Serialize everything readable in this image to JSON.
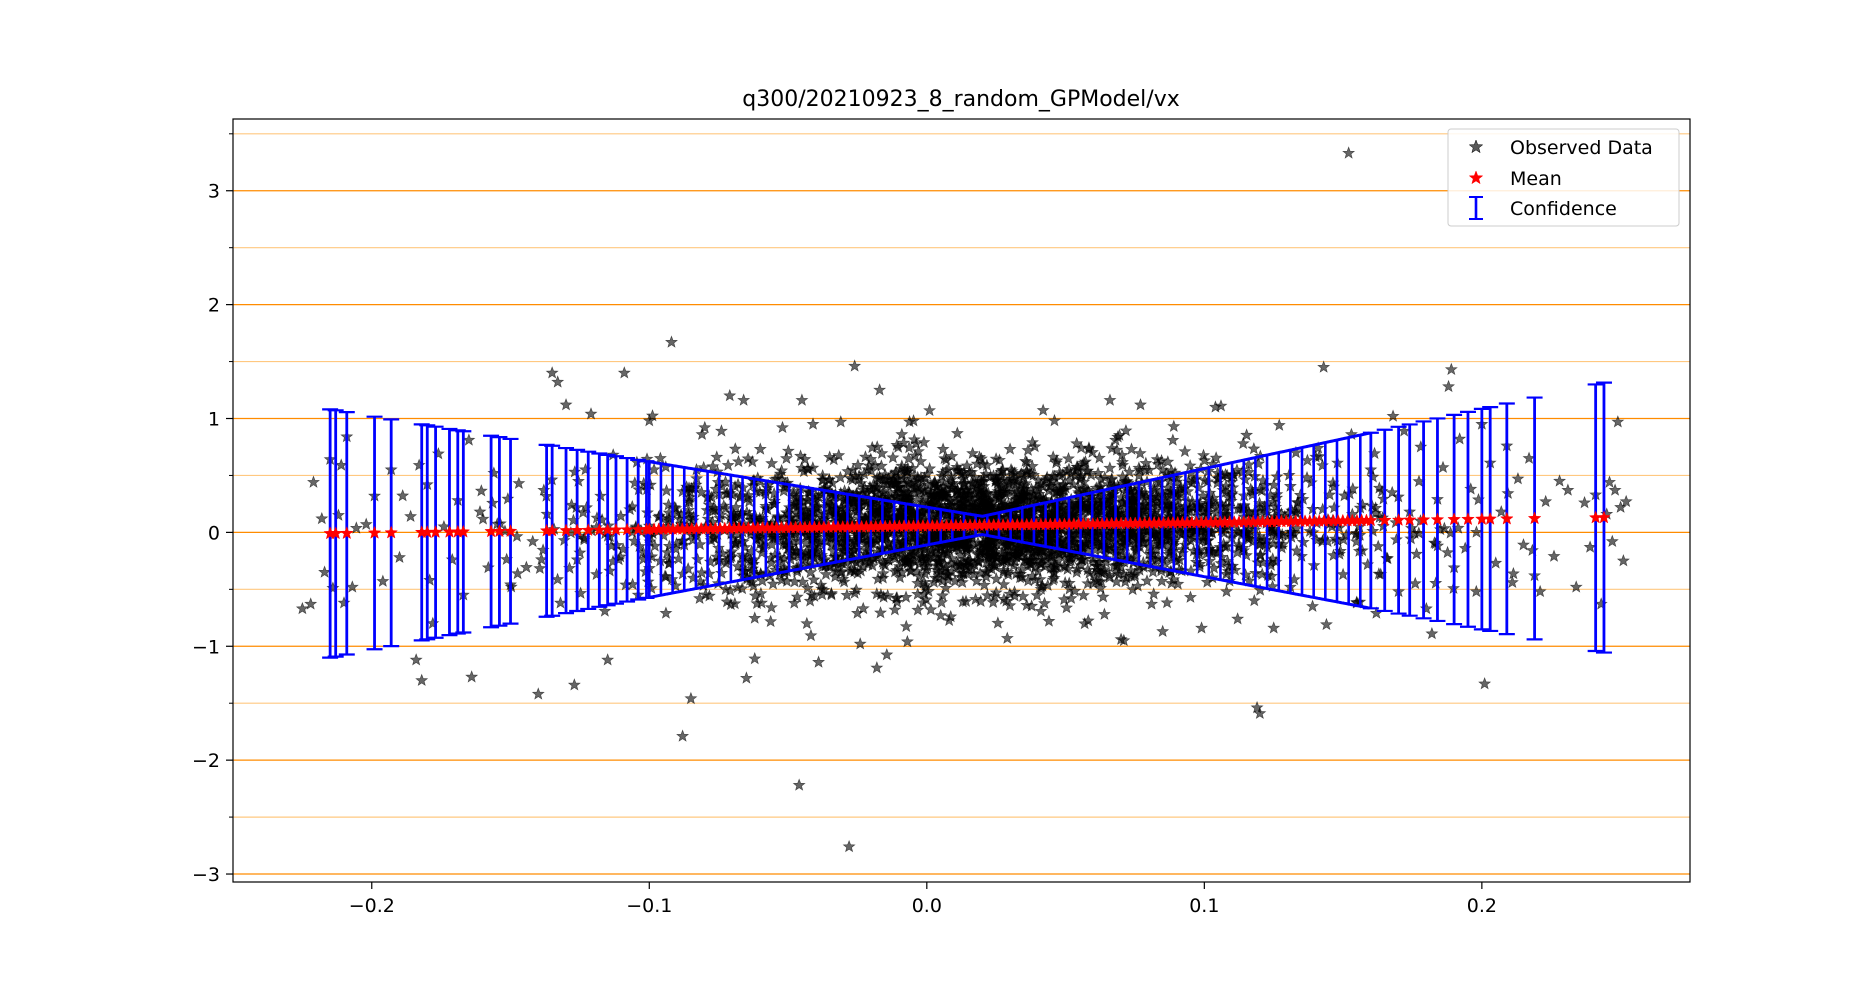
{
  "chart_data": {
    "type": "scatter",
    "title": "q300/20210923_8_random_GPModel/vx",
    "xlabel": "",
    "ylabel": "",
    "xlim": [
      -0.25,
      0.275
    ],
    "ylim": [
      -3.07,
      3.63
    ],
    "x_ticks": [
      -0.2,
      -0.1,
      0.0,
      0.1,
      0.2
    ],
    "x_tick_labels": [
      "−0.2",
      "−0.1",
      "0.0",
      "0.1",
      "0.2"
    ],
    "y_ticks": [
      -3,
      -2,
      -1,
      0,
      1,
      2,
      3
    ],
    "y_tick_labels": [
      "−3",
      "−2",
      "−1",
      "0",
      "1",
      "2",
      "3"
    ],
    "y_minor_gridlines": [
      -2.5,
      -1.5,
      -0.5,
      0.5,
      1.5,
      2.5,
      3.5
    ],
    "grid": true,
    "legend_position": "top-right",
    "colors": {
      "observed": "#000000",
      "mean": "#ff0000",
      "confidence": "#0000ff",
      "grid_major": "#ff8c00",
      "grid_minor": "#ffc880"
    },
    "legend": [
      {
        "label": "Observed Data",
        "marker": "star",
        "color": "#000000"
      },
      {
        "label": "Mean",
        "marker": "star",
        "color": "#ff0000"
      },
      {
        "label": "Confidence",
        "marker": "errorbar",
        "color": "#0000ff"
      }
    ],
    "mean_line": {
      "x_start": -0.215,
      "y_start": -0.01,
      "x_end": 0.245,
      "y_end": 0.13
    },
    "confidence_band": {
      "x_min_point": 0.02,
      "half_width_at_min": 0.08,
      "half_width_at_left": 1.09,
      "half_width_at_right": 1.19
    },
    "series": [
      {
        "name": "Observed Data",
        "marker": "star",
        "points": [
          [
            -0.225,
            -0.67
          ],
          [
            -0.222,
            -0.63
          ],
          [
            -0.221,
            0.44
          ],
          [
            -0.218,
            0.12
          ],
          [
            -0.217,
            -0.35
          ],
          [
            -0.215,
            0.64
          ],
          [
            -0.214,
            -0.49
          ],
          [
            -0.212,
            0.15
          ],
          [
            -0.211,
            0.59
          ],
          [
            -0.21,
            -0.62
          ],
          [
            -0.209,
            0.84
          ],
          [
            -0.207,
            -0.48
          ],
          [
            -0.202,
            0.07
          ],
          [
            -0.199,
            0.32
          ],
          [
            -0.196,
            -0.43
          ],
          [
            -0.193,
            0.55
          ],
          [
            -0.19,
            -0.22
          ],
          [
            -0.186,
            0.14
          ],
          [
            -0.184,
            -1.12
          ],
          [
            -0.182,
            -1.3
          ],
          [
            -0.18,
            0.42
          ],
          [
            -0.178,
            -0.8
          ],
          [
            -0.176,
            0.69
          ],
          [
            -0.174,
            0.05
          ],
          [
            -0.171,
            -0.24
          ],
          [
            -0.169,
            0.28
          ],
          [
            -0.167,
            -0.55
          ],
          [
            -0.165,
            0.81
          ],
          [
            -0.164,
            -1.27
          ],
          [
            -0.161,
            0.18
          ],
          [
            -0.158,
            -0.31
          ],
          [
            -0.156,
            0.52
          ],
          [
            -0.152,
            0.01
          ],
          [
            -0.15,
            -0.46
          ],
          [
            -0.147,
            0.43
          ],
          [
            -0.142,
            -0.08
          ],
          [
            -0.14,
            -1.42
          ],
          [
            -0.138,
            0.37
          ],
          [
            -0.135,
            1.4
          ],
          [
            -0.133,
            1.32
          ],
          [
            -0.132,
            -0.62
          ],
          [
            -0.13,
            1.12
          ],
          [
            -0.128,
            0.24
          ],
          [
            -0.127,
            -1.34
          ],
          [
            -0.125,
            -0.18
          ],
          [
            -0.123,
            0.55
          ],
          [
            -0.121,
            1.04
          ],
          [
            -0.119,
            -0.37
          ],
          [
            -0.117,
            0.11
          ],
          [
            -0.115,
            -1.12
          ],
          [
            -0.113,
            0.68
          ],
          [
            -0.111,
            -0.24
          ],
          [
            -0.109,
            1.4
          ],
          [
            -0.107,
            0.2
          ],
          [
            -0.104,
            -0.55
          ],
          [
            -0.102,
            0.43
          ],
          [
            -0.1,
            0.98
          ],
          [
            -0.098,
            -0.12
          ],
          [
            -0.096,
            0.65
          ],
          [
            -0.094,
            -0.71
          ],
          [
            -0.092,
            1.67
          ],
          [
            -0.09,
            0.17
          ],
          [
            -0.088,
            -1.79
          ],
          [
            -0.086,
            -0.32
          ],
          [
            -0.085,
            -1.46
          ],
          [
            -0.083,
            0.55
          ],
          [
            -0.081,
            0.86
          ],
          [
            -0.08,
            0.92
          ],
          [
            -0.078,
            -0.26
          ],
          [
            -0.076,
            0.38
          ],
          [
            -0.074,
            0.89
          ],
          [
            -0.072,
            -0.61
          ],
          [
            -0.071,
            1.2
          ],
          [
            -0.069,
            0.06
          ],
          [
            -0.066,
            1.16
          ],
          [
            -0.065,
            -1.28
          ],
          [
            -0.063,
            -0.44
          ],
          [
            -0.062,
            -1.11
          ],
          [
            -0.06,
            0.73
          ],
          [
            -0.058,
            0.23
          ],
          [
            -0.056,
            -0.66
          ],
          [
            -0.054,
            0.47
          ],
          [
            -0.052,
            0.92
          ],
          [
            -0.05,
            -0.14
          ],
          [
            -0.048,
            0.36
          ],
          [
            -0.046,
            -2.22
          ],
          [
            -0.045,
            1.16
          ],
          [
            -0.043,
            -0.49
          ],
          [
            -0.041,
            0.95
          ],
          [
            -0.039,
            -1.14
          ],
          [
            -0.037,
            0.16
          ],
          [
            -0.035,
            0.66
          ],
          [
            -0.033,
            -0.39
          ],
          [
            -0.031,
            0.97
          ],
          [
            -0.029,
            0.29
          ],
          [
            -0.028,
            -2.76
          ],
          [
            -0.026,
            1.46
          ],
          [
            -0.025,
            -0.71
          ],
          [
            -0.024,
            -0.98
          ],
          [
            -0.022,
            0.12
          ],
          [
            -0.02,
            0.54
          ],
          [
            -0.018,
            -1.19
          ],
          [
            -0.017,
            1.25
          ],
          [
            -0.015,
            -0.29
          ],
          [
            -0.013,
            0.43
          ],
          [
            -0.011,
            -0.58
          ],
          [
            -0.009,
            0.86
          ],
          [
            -0.007,
            -0.96
          ],
          [
            -0.005,
            0.19
          ],
          [
            -0.003,
            0.71
          ],
          [
            -0.001,
            -0.44
          ],
          [
            0.001,
            1.07
          ],
          [
            0.003,
            0.33
          ],
          [
            0.005,
            -0.73
          ],
          [
            0.007,
            0.54
          ],
          [
            0.009,
            -0.23
          ],
          [
            0.011,
            0.87
          ],
          [
            0.013,
            -0.61
          ],
          [
            0.015,
            0.15
          ],
          [
            0.017,
            -0.37
          ],
          [
            0.019,
            0.66
          ],
          [
            0.021,
            -0.12
          ],
          [
            0.023,
            0.49
          ],
          [
            0.025,
            -0.53
          ],
          [
            0.027,
            0.23
          ],
          [
            0.029,
            -0.93
          ],
          [
            0.03,
            0.73
          ],
          [
            0.032,
            -0.19
          ],
          [
            0.034,
            0.42
          ],
          [
            0.036,
            -0.64
          ],
          [
            0.038,
            0.58
          ],
          [
            0.04,
            -0.34
          ],
          [
            0.042,
            0.27
          ],
          [
            0.044,
            -0.78
          ],
          [
            0.046,
            0.98
          ],
          [
            0.048,
            -0.1
          ],
          [
            0.05,
            0.39
          ],
          [
            0.052,
            -0.58
          ],
          [
            0.054,
            0.78
          ],
          [
            0.056,
            -0.24
          ],
          [
            0.058,
            0.54
          ],
          [
            0.06,
            -0.45
          ],
          [
            0.062,
            0.29
          ],
          [
            0.064,
            -0.72
          ],
          [
            0.066,
            1.16
          ],
          [
            0.068,
            0.81
          ],
          [
            0.07,
            -0.94
          ],
          [
            0.071,
            -0.95
          ],
          [
            0.073,
            0.53
          ],
          [
            0.075,
            -0.37
          ],
          [
            0.077,
            1.12
          ],
          [
            0.079,
            0.19
          ],
          [
            0.081,
            -0.63
          ],
          [
            0.083,
            0.64
          ],
          [
            0.085,
            -0.87
          ],
          [
            0.087,
            0.39
          ],
          [
            0.089,
            0.93
          ],
          [
            0.091,
            -0.33
          ],
          [
            0.093,
            0.71
          ],
          [
            0.095,
            -0.57
          ],
          [
            0.097,
            0.47
          ],
          [
            0.099,
            -0.84
          ],
          [
            0.101,
            0.22
          ],
          [
            0.103,
            0.6
          ],
          [
            0.104,
            1.1
          ],
          [
            0.106,
            1.11
          ],
          [
            0.108,
            -0.52
          ],
          [
            0.11,
            0.34
          ],
          [
            0.112,
            -0.76
          ],
          [
            0.114,
            0.78
          ],
          [
            0.116,
            -0.06
          ],
          [
            0.118,
            -0.6
          ],
          [
            0.119,
            -1.54
          ],
          [
            0.12,
            -1.59
          ],
          [
            0.122,
            0.41
          ],
          [
            0.124,
            -0.29
          ],
          [
            0.125,
            -0.84
          ],
          [
            0.127,
            0.94
          ],
          [
            0.129,
            0.14
          ],
          [
            0.131,
            -0.48
          ],
          [
            0.133,
            0.7
          ],
          [
            0.135,
            -0.21
          ],
          [
            0.137,
            0.48
          ],
          [
            0.139,
            -0.65
          ],
          [
            0.141,
            0.74
          ],
          [
            0.143,
            1.45
          ],
          [
            0.144,
            -0.81
          ],
          [
            0.146,
            0.05
          ],
          [
            0.148,
            0.61
          ],
          [
            0.15,
            -0.37
          ],
          [
            0.152,
            3.33
          ],
          [
            0.153,
            0.86
          ],
          [
            0.155,
            -0.62
          ],
          [
            0.157,
            0.24
          ],
          [
            0.16,
            0.55
          ],
          [
            0.162,
            -0.71
          ],
          [
            0.164,
            0.36
          ],
          [
            0.166,
            -0.23
          ],
          [
            0.168,
            1.02
          ],
          [
            0.17,
            -0.52
          ],
          [
            0.172,
            0.89
          ],
          [
            0.174,
            0.18
          ],
          [
            0.176,
            -0.45
          ],
          [
            0.178,
            0.75
          ],
          [
            0.18,
            -0.67
          ],
          [
            0.182,
            -0.89
          ],
          [
            0.184,
            0.29
          ],
          [
            0.186,
            0.57
          ],
          [
            0.188,
            1.28
          ],
          [
            0.189,
            1.43
          ],
          [
            0.19,
            -0.31
          ],
          [
            0.192,
            0.82
          ],
          [
            0.194,
            -0.14
          ],
          [
            0.196,
            0.38
          ],
          [
            0.198,
            -0.52
          ],
          [
            0.2,
            0.95
          ],
          [
            0.201,
            -1.33
          ],
          [
            0.203,
            0.61
          ],
          [
            0.205,
            -0.27
          ],
          [
            0.207,
            0.18
          ],
          [
            0.209,
            0.76
          ],
          [
            0.211,
            -0.44
          ],
          [
            0.213,
            0.47
          ],
          [
            0.215,
            -0.11
          ],
          [
            0.217,
            0.65
          ],
          [
            0.219,
            -0.38
          ],
          [
            0.221,
            -0.52
          ],
          [
            0.223,
            0.27
          ],
          [
            0.226,
            -0.21
          ],
          [
            0.228,
            0.45
          ],
          [
            0.231,
            0.37
          ],
          [
            0.234,
            -0.48
          ],
          [
            0.237,
            0.26
          ],
          [
            0.239,
            -0.13
          ],
          [
            0.241,
            0.33
          ],
          [
            0.243,
            -0.63
          ],
          [
            0.245,
            0.16
          ],
          [
            0.246,
            0.44
          ],
          [
            0.247,
            -0.08
          ],
          [
            0.248,
            0.37
          ],
          [
            0.249,
            0.97
          ],
          [
            0.25,
            0.22
          ],
          [
            0.251,
            -0.25
          ],
          [
            0.252,
            0.27
          ]
        ]
      },
      {
        "name": "Mean",
        "marker": "star",
        "x": [
          -0.215,
          -0.213,
          -0.209,
          -0.199,
          -0.193,
          -0.182,
          -0.18,
          -0.177,
          -0.172,
          -0.169,
          -0.167,
          -0.157,
          -0.154,
          -0.15,
          -0.137,
          -0.135,
          -0.13,
          -0.126,
          -0.122,
          -0.118,
          -0.115,
          -0.112,
          -0.108,
          -0.104,
          -0.101,
          0.16,
          0.165,
          0.17,
          0.174,
          0.179,
          0.184,
          0.19,
          0.195,
          0.2,
          0.203,
          0.209,
          0.219,
          0.241,
          0.244
        ]
      },
      {
        "name": "Confidence",
        "marker": "errorbar",
        "x": [
          -0.215,
          -0.213,
          -0.209,
          -0.199,
          -0.193,
          -0.182,
          -0.18,
          -0.177,
          -0.172,
          -0.169,
          -0.167,
          -0.157,
          -0.154,
          -0.15,
          -0.137,
          -0.135,
          -0.13,
          -0.126,
          -0.122,
          -0.118,
          -0.115,
          -0.112,
          -0.108,
          -0.104,
          -0.101,
          0.16,
          0.165,
          0.17,
          0.174,
          0.179,
          0.184,
          0.19,
          0.195,
          0.2,
          0.203,
          0.209,
          0.219,
          0.241,
          0.244
        ]
      }
    ]
  }
}
